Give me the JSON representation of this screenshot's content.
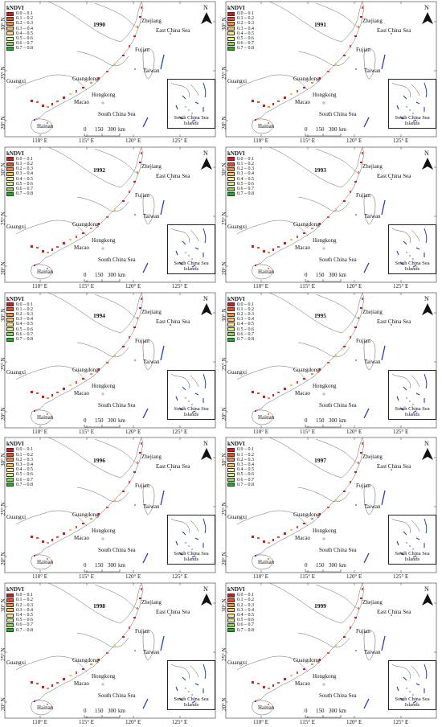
{
  "title": "",
  "legend": {
    "title": "kNDVI",
    "classes": [
      {
        "label": "0.0 – 0.1",
        "color": "#d7191c"
      },
      {
        "label": "0.1 – 0.2",
        "color": "#f04a28"
      },
      {
        "label": "0.2 – 0.3",
        "color": "#f8883a"
      },
      {
        "label": "0.3 – 0.4",
        "color": "#fdbd57"
      },
      {
        "label": "0.4 – 0.5",
        "color": "#fee991"
      },
      {
        "label": "0.5 – 0.6",
        "color": "#d7ee8e"
      },
      {
        "label": "0.6 – 0.7",
        "color": "#8fd35a"
      },
      {
        "label": "0.7 – 0.8",
        "color": "#1ab41a"
      }
    ]
  },
  "place_labels": {
    "zhejiang": "Zhejiang",
    "east_china_sea": "East China Sea",
    "fujian": "Fujian",
    "taiwan": "Taiwan",
    "guangdong": "Guangdong",
    "guangxi": "Guangxi",
    "hongkong": "Hongkong",
    "macao": "Macao",
    "south_china_sea": "South China Sea",
    "hainan": "Hainan"
  },
  "inset_caption": [
    "South China Sea",
    "Islands"
  ],
  "north_label": "N",
  "scale_bar": {
    "labels": [
      "0",
      "150",
      "300"
    ],
    "unit": "km"
  },
  "lon_ticks": [
    "110° E",
    "115° E",
    "120° E",
    "125° E"
  ],
  "lat_ticks": [
    "30° N",
    "25° N",
    "20° N"
  ],
  "panels": [
    {
      "year": "1990"
    },
    {
      "year": "1991"
    },
    {
      "year": "1992"
    },
    {
      "year": "1993"
    },
    {
      "year": "1994"
    },
    {
      "year": "1995"
    },
    {
      "year": "1996"
    },
    {
      "year": "1997"
    },
    {
      "year": "1998"
    },
    {
      "year": "1999"
    }
  ]
}
